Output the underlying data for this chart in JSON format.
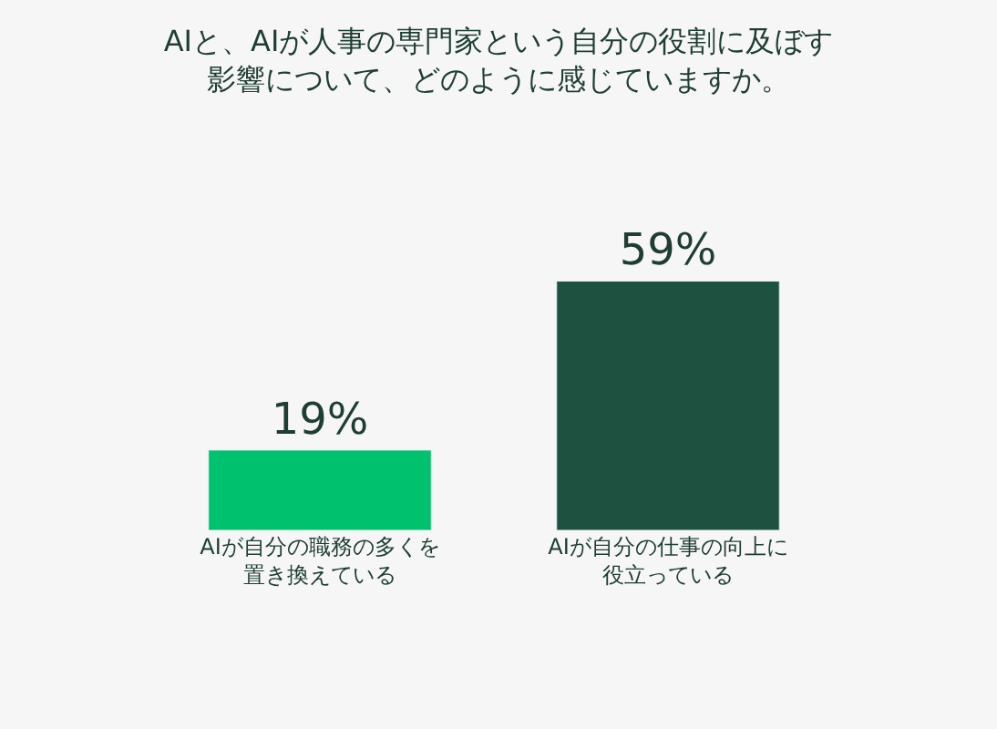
{
  "chart_data": {
    "type": "bar",
    "title": "AIと、AIが人事の専門家という自分の役割に及ぼす影響について、どのように感じていますか。",
    "categories": [
      "AIが自分の職務の多くを置き換えている",
      "AIが自分の仕事の向上に役立っている"
    ],
    "values": [
      19,
      59
    ],
    "colors": [
      "#00c16e",
      "#1f5140"
    ],
    "value_labels": [
      "19%",
      "59%"
    ],
    "grid": false,
    "legend": false
  }
}
